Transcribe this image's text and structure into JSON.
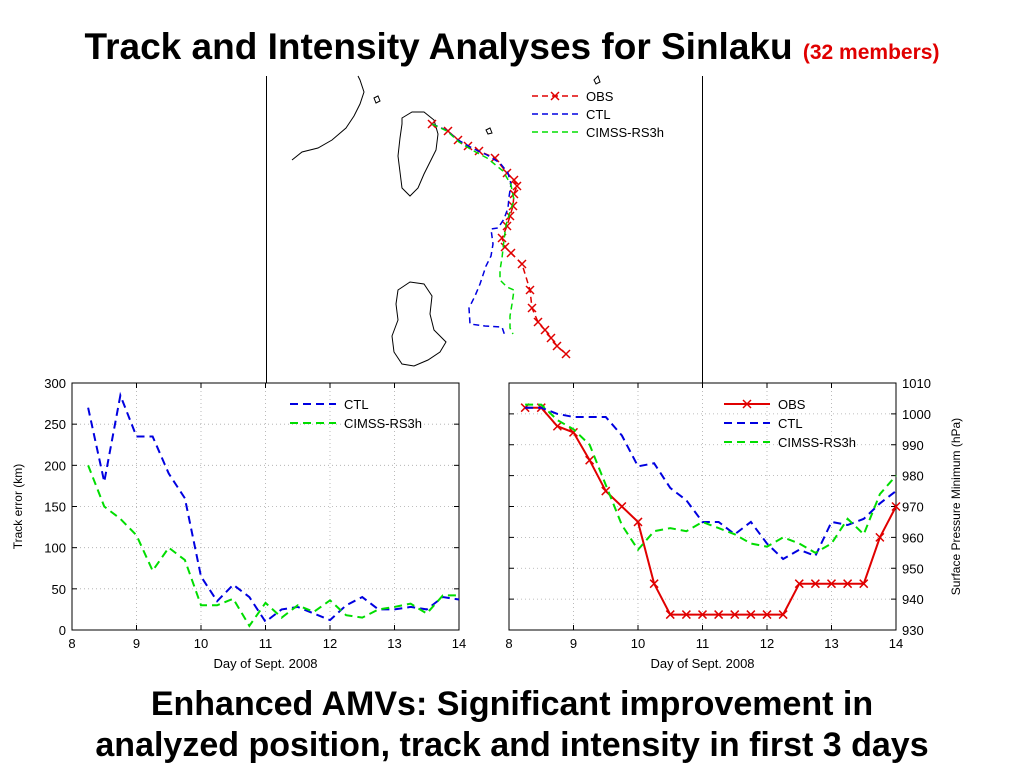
{
  "slide": {
    "title": "Track and Intensity Analyses for Sinlaku",
    "title_note": "(32 members)",
    "footer_line1": "Enhanced AMVs: Significant improvement in",
    "footer_line2": "analyzed position, track and intensity in first 3 days"
  },
  "colors": {
    "obs": "#e00000",
    "ctl": "#0000e0",
    "cimss": "#00dd00"
  },
  "chart_data": [
    {
      "type": "line",
      "id": "track-map",
      "legend": [
        "OBS",
        "CTL",
        "CIMSS-RS3h"
      ],
      "legend_position": "top-right",
      "series": [
        {
          "name": "OBS",
          "points": [
            [
              432,
              124
            ],
            [
              448,
              131
            ],
            [
              458,
              140
            ],
            [
              468,
              146
            ],
            [
              479,
              151
            ],
            [
              495,
              158
            ],
            [
              507,
              173
            ],
            [
              514,
              180
            ],
            [
              517,
              186
            ],
            [
              514,
              194
            ],
            [
              513,
              206
            ],
            [
              510,
              216
            ],
            [
              507,
              226
            ],
            [
              502,
              238
            ],
            [
              505,
              247
            ],
            [
              511,
              253
            ],
            [
              522,
              264
            ],
            [
              530,
              290
            ],
            [
              532,
              308
            ],
            [
              538,
              322
            ],
            [
              545,
              330
            ],
            [
              551,
              338
            ],
            [
              557,
              346
            ],
            [
              566,
              354
            ]
          ]
        },
        {
          "name": "CTL",
          "points": [
            [
              432,
              124
            ],
            [
              446,
              130
            ],
            [
              458,
              140
            ],
            [
              472,
              148
            ],
            [
              487,
              155
            ],
            [
              500,
              163
            ],
            [
              508,
              173
            ],
            [
              511,
              184
            ],
            [
              509,
              197
            ],
            [
              508,
              208
            ],
            [
              504,
              219
            ],
            [
              498,
              228
            ],
            [
              491,
              229
            ],
            [
              493,
              244
            ],
            [
              491,
              256
            ],
            [
              486,
              266
            ],
            [
              480,
              284
            ],
            [
              475,
              296
            ],
            [
              469,
              308
            ],
            [
              470,
              324
            ],
            [
              485,
              326
            ],
            [
              502,
              327
            ],
            [
              505,
              336
            ]
          ]
        },
        {
          "name": "CIMSS-RS3h",
          "points": [
            [
              432,
              124
            ],
            [
              447,
              131
            ],
            [
              459,
              142
            ],
            [
              472,
              150
            ],
            [
              487,
              158
            ],
            [
              503,
              171
            ],
            [
              511,
              185
            ],
            [
              514,
              200
            ],
            [
              510,
              212
            ],
            [
              506,
              225
            ],
            [
              504,
              240
            ],
            [
              502,
              258
            ],
            [
              500,
              270
            ],
            [
              500,
              280
            ],
            [
              507,
              287
            ],
            [
              514,
              290
            ],
            [
              512,
              304
            ],
            [
              510,
              316
            ],
            [
              510,
              328
            ],
            [
              513,
              334
            ]
          ]
        }
      ]
    },
    {
      "type": "line",
      "id": "track-error",
      "xlabel": "Day of Sept. 2008",
      "ylabel": "Track error (km)",
      "xlim": [
        8,
        14
      ],
      "ylim": [
        0,
        300
      ],
      "xticks": [
        8,
        9,
        10,
        11,
        12,
        13,
        14
      ],
      "yticks": [
        0,
        50,
        100,
        150,
        200,
        250,
        300
      ],
      "grid": true,
      "legend_position": "top-right",
      "series": [
        {
          "name": "CTL",
          "x": [
            8.25,
            8.5,
            8.75,
            9.0,
            9.25,
            9.5,
            9.75,
            10.0,
            10.25,
            10.5,
            10.75,
            11.0,
            11.25,
            11.5,
            11.75,
            12.0,
            12.25,
            12.5,
            12.75,
            13.0,
            13.25,
            13.5,
            13.75,
            14.0
          ],
          "y": [
            270,
            180,
            285,
            235,
            235,
            190,
            160,
            65,
            35,
            55,
            40,
            10,
            25,
            28,
            20,
            12,
            30,
            40,
            25,
            25,
            28,
            25,
            40,
            37
          ]
        },
        {
          "name": "CIMSS-RS3h",
          "x": [
            8.25,
            8.5,
            8.75,
            9.0,
            9.25,
            9.5,
            9.75,
            10.0,
            10.25,
            10.5,
            10.75,
            11.0,
            11.25,
            11.5,
            11.75,
            12.0,
            12.25,
            12.5,
            12.75,
            13.0,
            13.25,
            13.5,
            13.75,
            14.0
          ],
          "y": [
            200,
            150,
            135,
            115,
            72,
            100,
            85,
            30,
            30,
            38,
            5,
            33,
            15,
            30,
            22,
            36,
            18,
            15,
            25,
            28,
            32,
            20,
            42,
            42
          ]
        }
      ]
    },
    {
      "type": "line",
      "id": "intensity",
      "xlabel": "Day of Sept. 2008",
      "ylabel": "Surface Pressure Minimum (hPa)",
      "xlim": [
        8,
        14
      ],
      "ylim": [
        930,
        1010
      ],
      "xticks": [
        8,
        9,
        10,
        11,
        12,
        13,
        14
      ],
      "yticks": [
        930,
        940,
        950,
        960,
        970,
        980,
        990,
        1000,
        1010
      ],
      "y_axis_side": "right",
      "grid": true,
      "legend_position": "top-right",
      "series": [
        {
          "name": "OBS",
          "markers": true,
          "x": [
            8.25,
            8.5,
            8.75,
            9.0,
            9.25,
            9.5,
            9.75,
            10.0,
            10.25,
            10.5,
            10.75,
            11.0,
            11.25,
            11.5,
            11.75,
            12.0,
            12.25,
            12.5,
            12.75,
            13.0,
            13.25,
            13.5,
            13.75,
            14.0
          ],
          "y": [
            1002,
            1002,
            996,
            994,
            985,
            975,
            970,
            965,
            945,
            935,
            935,
            935,
            935,
            935,
            935,
            935,
            935,
            945,
            945,
            945,
            945,
            945,
            960,
            970
          ]
        },
        {
          "name": "CTL",
          "x": [
            8.25,
            8.5,
            8.75,
            9.0,
            9.25,
            9.5,
            9.75,
            10.0,
            10.25,
            10.5,
            10.75,
            11.0,
            11.25,
            11.5,
            11.75,
            12.0,
            12.25,
            12.5,
            12.75,
            13.0,
            13.25,
            13.5,
            13.75,
            14.0
          ],
          "y": [
            1002,
            1002,
            1000,
            999,
            999,
            999,
            993,
            983,
            984,
            976,
            972,
            965,
            965,
            961,
            965,
            958,
            953,
            956,
            954,
            965,
            964,
            966,
            971,
            975
          ]
        },
        {
          "name": "CIMSS-RS3h",
          "x": [
            8.25,
            8.5,
            8.75,
            9.0,
            9.25,
            9.5,
            9.75,
            10.0,
            10.25,
            10.5,
            10.75,
            11.0,
            11.25,
            11.5,
            11.75,
            12.0,
            12.25,
            12.5,
            12.75,
            13.0,
            13.25,
            13.5,
            13.75,
            14.0
          ],
          "y": [
            1003,
            1003,
            998,
            995,
            990,
            977,
            964,
            956,
            962,
            963,
            962,
            965,
            963,
            961,
            958,
            957,
            960,
            958,
            955,
            958,
            966,
            961,
            974,
            980
          ]
        }
      ]
    }
  ]
}
